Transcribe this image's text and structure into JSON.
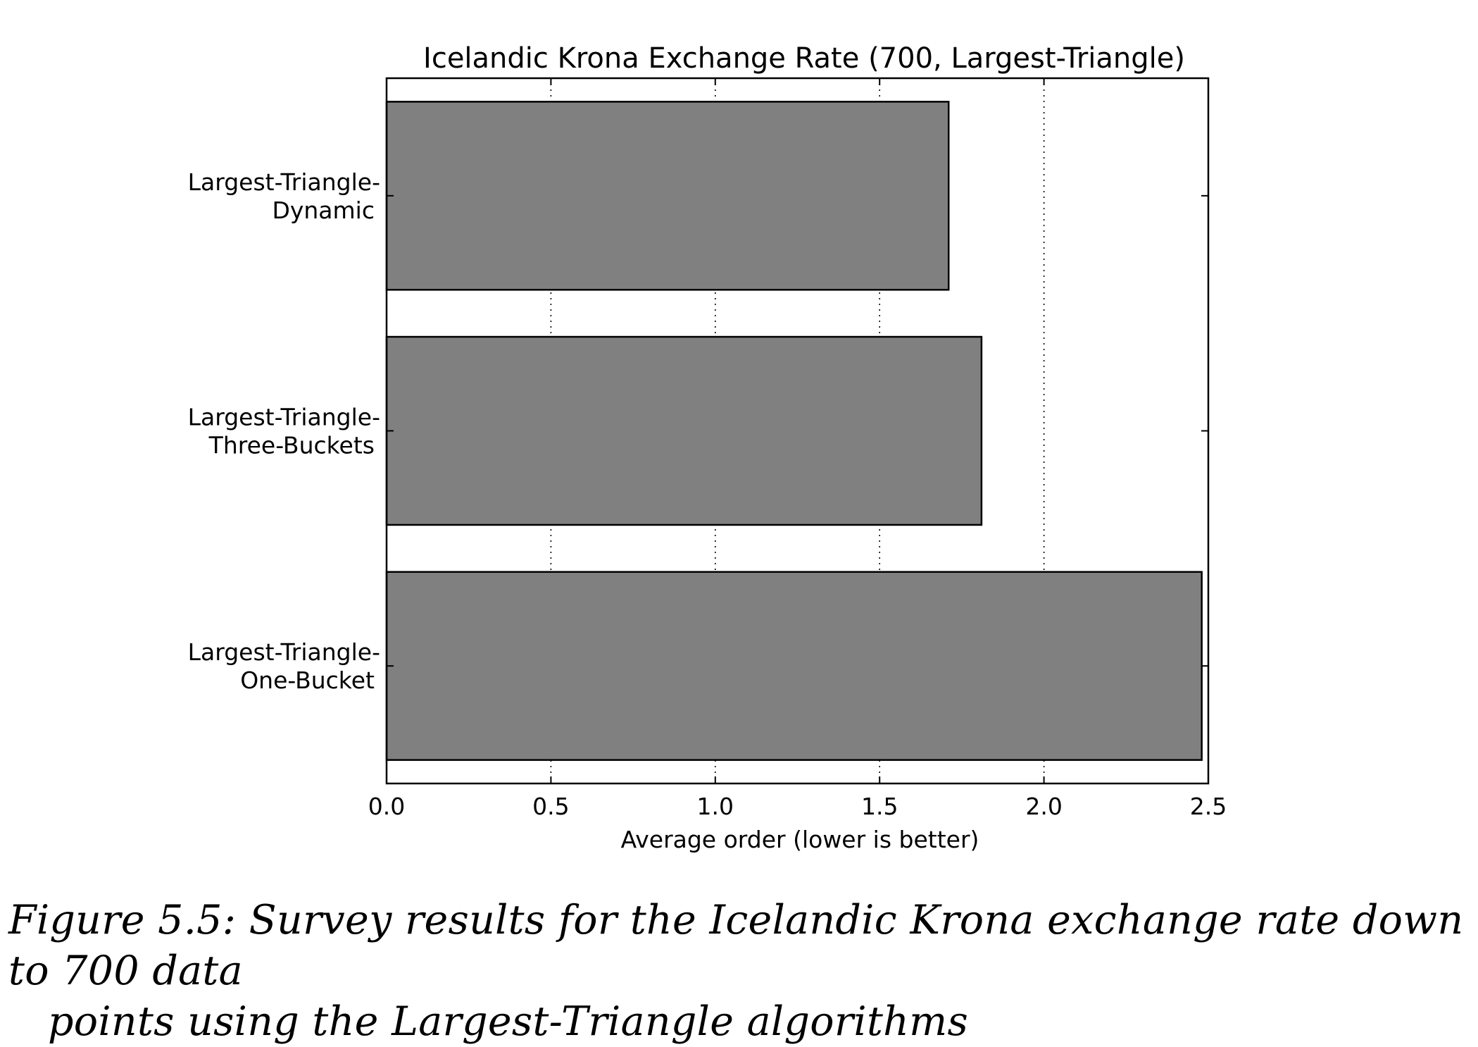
{
  "chart_data": {
    "type": "bar",
    "orientation": "horizontal",
    "title": "Icelandic Krona Exchange Rate (700, Largest-Triangle)",
    "xlabel": "Average order (lower is better)",
    "ylabel": "",
    "categories": [
      [
        "Largest-Triangle-",
        "Dynamic"
      ],
      [
        "Largest-Triangle-",
        "Three-Buckets"
      ],
      [
        "Largest-Triangle-",
        "One-Bucket"
      ]
    ],
    "values": [
      1.71,
      1.81,
      2.48
    ],
    "xlim": [
      0.0,
      2.5
    ],
    "xticks": [
      0.0,
      0.5,
      1.0,
      1.5,
      2.0,
      2.5
    ],
    "xtick_labels": [
      "0.0",
      "0.5",
      "1.0",
      "1.5",
      "2.0",
      "2.5"
    ],
    "grid": "x-dotted",
    "bar_color": "#808080",
    "edge_color": "#000000"
  },
  "caption": {
    "line1": "Figure 5.5: Survey results for the Icelandic Krona exchange rate down to 700 data",
    "line2": "points using the Largest-Triangle algorithms"
  }
}
